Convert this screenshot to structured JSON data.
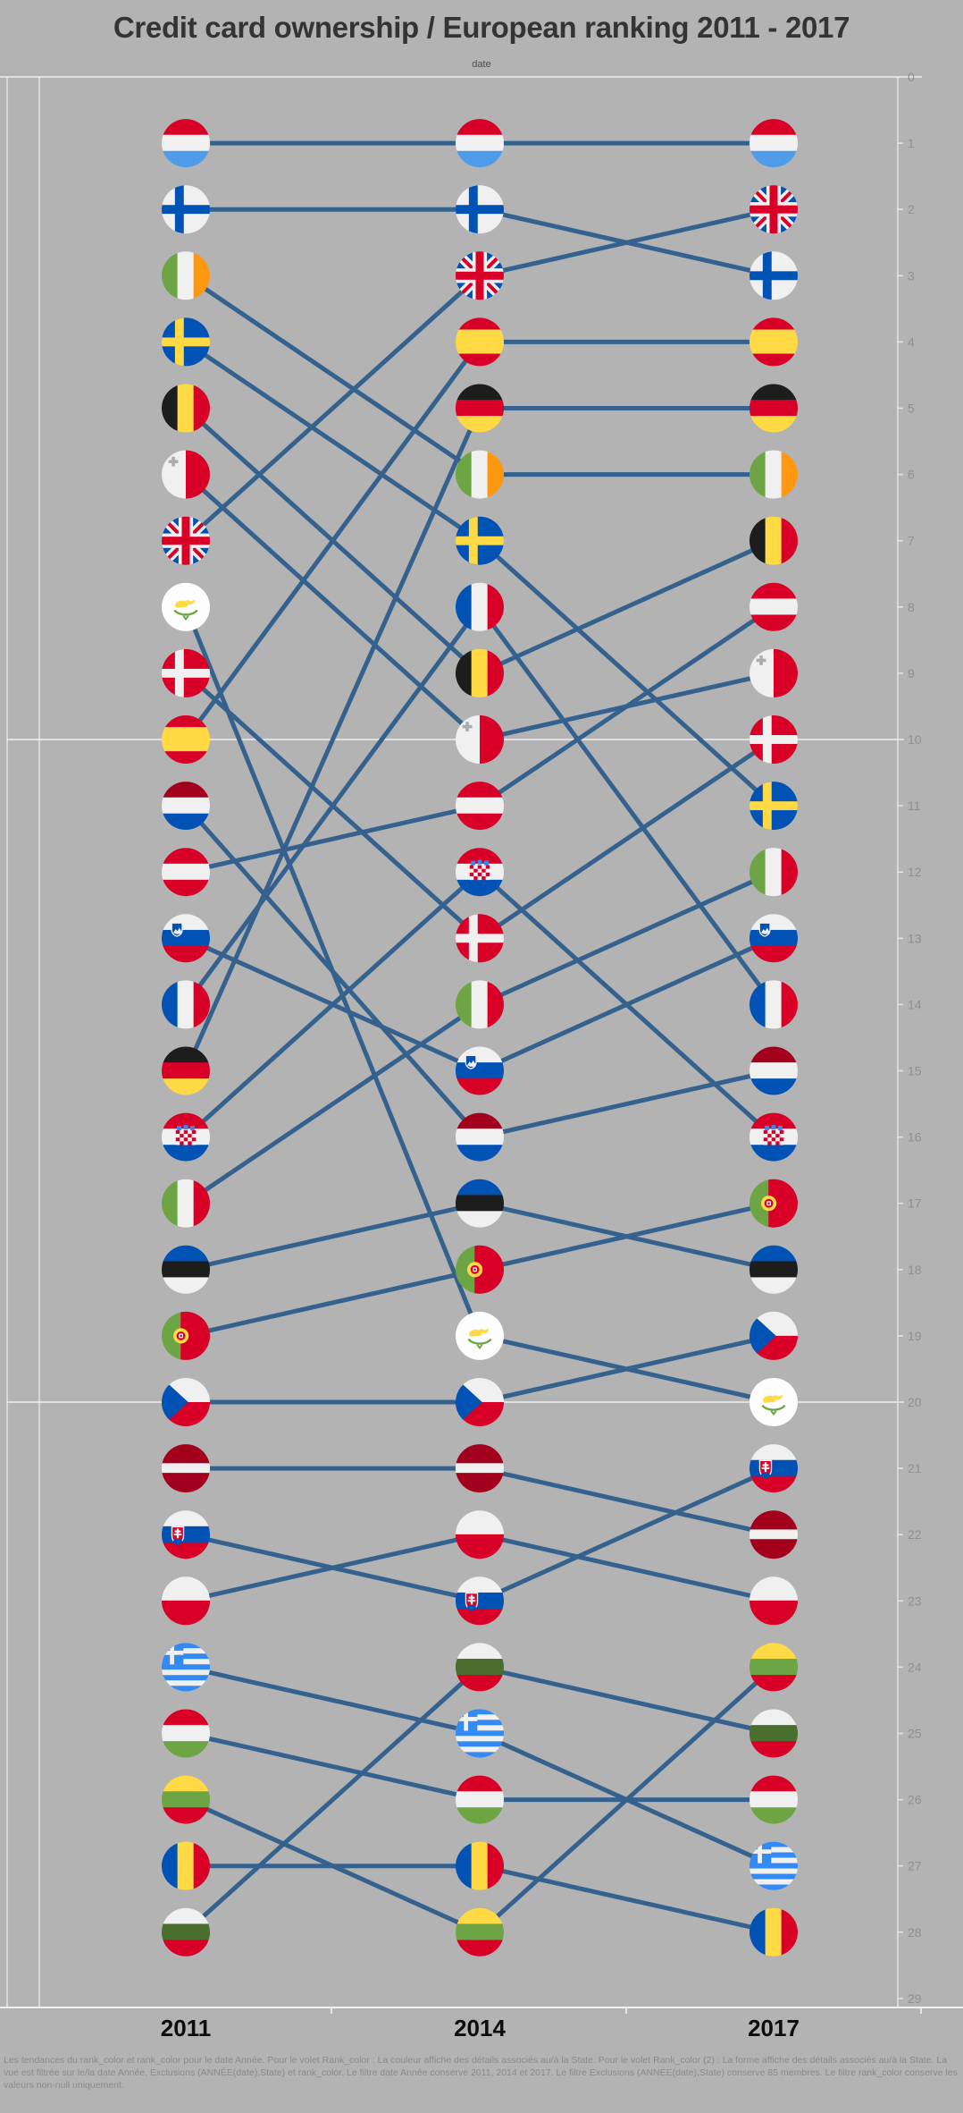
{
  "title": "Credit card ownership / European ranking 2011 - 2017",
  "axis_top_label": "date",
  "caption": "Les tendances du rank_color et rank_color pour le date Année.  Pour le volet Rank_color :  La couleur affiche des détails associés au/à la State.  Pour le volet Rank_color (2) :  La forme affiche des détails associés au/à la State. La vue est filtrée sur le/la date Année, Exclusions (ANNÉE(date),State) et rank_color. Le filtre date Année conserve 2011, 2014 et 2017. Le filtre Exclusions (ANNÉE(date),State) conserve 85 membres. Le filtre rank_color conserve les valeurs non-null uniquement.",
  "colors": {
    "background": "#b3b3b3",
    "trend_line": "#34618D",
    "grid": "#f0f0f0",
    "axis_text": "#8f8f8f",
    "title_text": "#343434",
    "year_text": "#0d0d0d",
    "caption_text": "#8a8a8a"
  },
  "chart_data": {
    "type": "line",
    "subtype": "bump-ranking",
    "title": "Credit card ownership / European ranking 2011 - 2017",
    "xlabel": "date",
    "x": [
      "2011",
      "2014",
      "2017"
    ],
    "ylim": [
      0,
      -29
    ],
    "grid_ranks": [
      0,
      -10,
      -20
    ],
    "y_tick_labels": [
      "0",
      "-1",
      "-2",
      "-3",
      "-4",
      "-5",
      "-6",
      "-7",
      "-8",
      "-9",
      "-10",
      "-11",
      "-12",
      "-13",
      "-14",
      "-15",
      "-16",
      "-17",
      "-18",
      "-19",
      "-20",
      "-21",
      "-22",
      "-23",
      "-24",
      "-25",
      "-26",
      "-27",
      "-28",
      "-29"
    ],
    "legend": "none",
    "series": [
      {
        "name": "Luxembourg",
        "flag": "lu",
        "ranks": [
          1,
          1,
          1
        ]
      },
      {
        "name": "Finland",
        "flag": "fi",
        "ranks": [
          2,
          2,
          3
        ]
      },
      {
        "name": "Ireland",
        "flag": "ie",
        "ranks": [
          3,
          6,
          6
        ]
      },
      {
        "name": "Sweden",
        "flag": "se",
        "ranks": [
          4,
          7,
          11
        ]
      },
      {
        "name": "Belgium",
        "flag": "be",
        "ranks": [
          5,
          9,
          7
        ]
      },
      {
        "name": "Malta",
        "flag": "mt",
        "ranks": [
          6,
          10,
          9
        ]
      },
      {
        "name": "United Kingdom",
        "flag": "gb",
        "ranks": [
          7,
          3,
          2
        ]
      },
      {
        "name": "Cyprus",
        "flag": "cy",
        "ranks": [
          8,
          19,
          20
        ]
      },
      {
        "name": "Denmark",
        "flag": "dk",
        "ranks": [
          9,
          13,
          10
        ]
      },
      {
        "name": "Spain",
        "flag": "es",
        "ranks": [
          10,
          4,
          4
        ]
      },
      {
        "name": "Netherlands",
        "flag": "nl",
        "ranks": [
          11,
          16,
          15
        ]
      },
      {
        "name": "Austria",
        "flag": "at",
        "ranks": [
          12,
          11,
          8
        ]
      },
      {
        "name": "Slovenia",
        "flag": "si",
        "ranks": [
          13,
          15,
          13
        ]
      },
      {
        "name": "France",
        "flag": "fr",
        "ranks": [
          14,
          8,
          14
        ]
      },
      {
        "name": "Germany",
        "flag": "de",
        "ranks": [
          15,
          5,
          5
        ]
      },
      {
        "name": "Croatia",
        "flag": "hr",
        "ranks": [
          16,
          12,
          16
        ]
      },
      {
        "name": "Italy",
        "flag": "it",
        "ranks": [
          17,
          14,
          12
        ]
      },
      {
        "name": "Estonia",
        "flag": "ee",
        "ranks": [
          18,
          17,
          18
        ]
      },
      {
        "name": "Portugal",
        "flag": "pt",
        "ranks": [
          19,
          18,
          17
        ]
      },
      {
        "name": "Czech Republic",
        "flag": "cz",
        "ranks": [
          20,
          20,
          19
        ]
      },
      {
        "name": "Latvia",
        "flag": "lv",
        "ranks": [
          21,
          21,
          22
        ]
      },
      {
        "name": "Slovakia",
        "flag": "sk",
        "ranks": [
          22,
          23,
          21
        ]
      },
      {
        "name": "Poland",
        "flag": "pl",
        "ranks": [
          23,
          22,
          23
        ]
      },
      {
        "name": "Greece",
        "flag": "gr",
        "ranks": [
          24,
          25,
          27
        ]
      },
      {
        "name": "Hungary",
        "flag": "hu",
        "ranks": [
          25,
          26,
          26
        ]
      },
      {
        "name": "Lithuania",
        "flag": "lt",
        "ranks": [
          26,
          28,
          24
        ]
      },
      {
        "name": "Romania",
        "flag": "ro",
        "ranks": [
          27,
          27,
          28
        ]
      },
      {
        "name": "Bulgaria",
        "flag": "bg",
        "ranks": [
          28,
          24,
          25
        ]
      }
    ]
  }
}
